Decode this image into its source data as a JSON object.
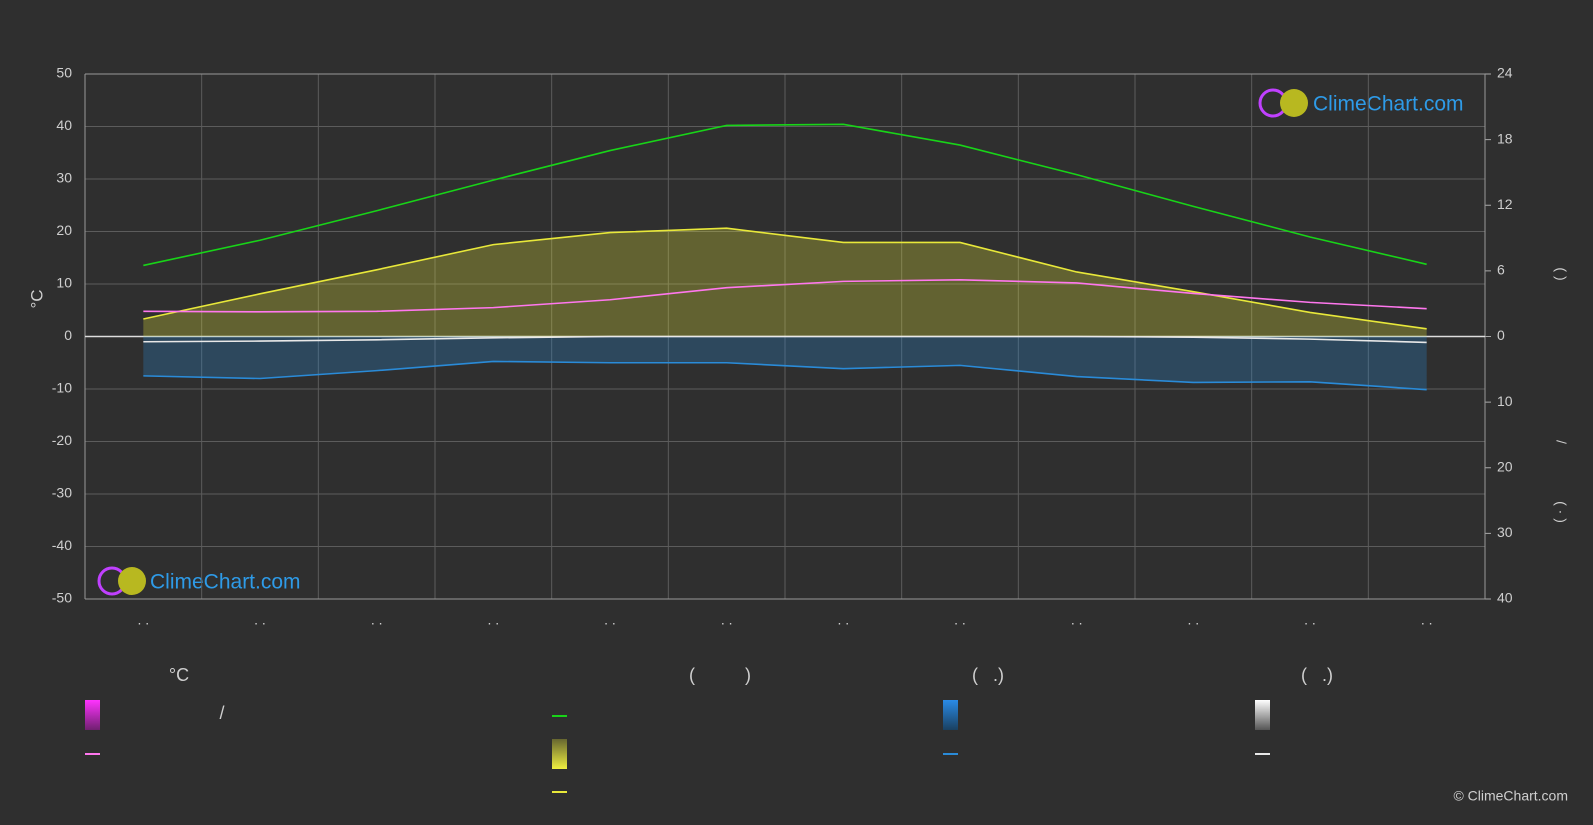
{
  "chart_data": {
    "type": "line",
    "categories": [
      ". .",
      ". .",
      ". .",
      ". .",
      ". .",
      ". .",
      ". .",
      ". .",
      ". .",
      ". .",
      ". .",
      ". ."
    ],
    "ylabel": "°C",
    "ylim": [
      -50,
      50
    ],
    "yticks": [
      -50,
      -40,
      -30,
      -20,
      -10,
      0,
      10,
      20,
      30,
      40,
      50
    ],
    "y2lim": [
      0,
      24
    ],
    "y2ticks": [
      0,
      6,
      12,
      18,
      24
    ],
    "y3lim": [
      0,
      40
    ],
    "y3ticks": [
      10,
      20,
      30,
      40
    ],
    "y2label": "(          )",
    "y3label_parts": [
      "/",
      "( · )"
    ],
    "grid": true,
    "series": [
      {
        "color": "#18d418",
        "axis": "y2",
        "values": [
          6.5,
          8.8,
          11.5,
          14.3,
          17.0,
          19.3,
          19.4,
          17.5,
          14.8,
          11.9,
          9.1,
          6.6
        ]
      },
      {
        "color": "#e8e83a",
        "axis": "y2",
        "area": true,
        "values": [
          1.6,
          3.9,
          6.1,
          8.4,
          9.5,
          9.9,
          8.6,
          8.6,
          5.9,
          4.1,
          2.2,
          0.7
        ]
      },
      {
        "color": "#ff77ee",
        "axis": "y",
        "values": [
          4.8,
          4.7,
          4.8,
          5.5,
          7.0,
          9.3,
          10.5,
          10.8,
          10.2,
          8.2,
          6.5,
          5.3
        ]
      },
      {
        "color": "#2a8bd8",
        "axis": "y3",
        "area": true,
        "values": [
          6.0,
          6.4,
          5.2,
          3.8,
          4.0,
          4.0,
          4.9,
          4.4,
          6.1,
          7.0,
          6.9,
          8.1
        ]
      },
      {
        "color": "#e8e8e8",
        "axis": "y3",
        "values": [
          0.8,
          0.7,
          0.5,
          0.2,
          0,
          0,
          0,
          0,
          0,
          0.1,
          0.4,
          0.9
        ]
      }
    ]
  },
  "legend": {
    "headers": [
      "°C",
      "(          )",
      "(   .)",
      "(   .)"
    ],
    "texts": [
      "/"
    ]
  },
  "branding": {
    "logo_top": "ClimeChart.com",
    "logo_bottom": "ClimeChart.com",
    "copyright": "© ClimeChart.com"
  }
}
